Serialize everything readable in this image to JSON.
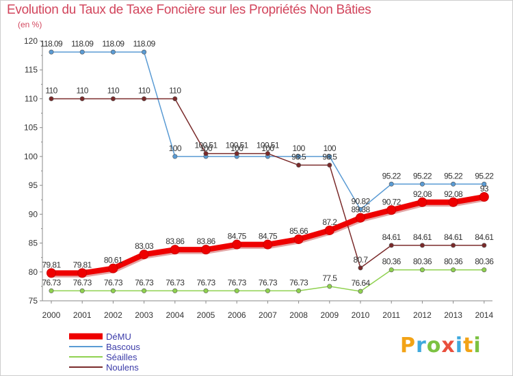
{
  "title": "Evolution du Taux de Taxe Foncière sur les Propriétés Non Bâties",
  "subtitle": "(en %)",
  "logo": {
    "letters": [
      "P",
      "r",
      "o",
      "x",
      "i",
      "t",
      "i"
    ],
    "colors": [
      "#f2a316",
      "#3fa9dd",
      "#7cc242",
      "#e94f3d",
      "#3fa9dd",
      "#f2a316",
      "#7cc242"
    ]
  },
  "chart_data": {
    "type": "line",
    "x": [
      "2000",
      "2001",
      "2002",
      "2003",
      "2004",
      "2005",
      "2006",
      "2007",
      "2008",
      "2009",
      "2010",
      "2011",
      "2012",
      "2013",
      "2014"
    ],
    "ylim": [
      75,
      120
    ],
    "yticks": [
      "75",
      "80",
      "85",
      "90",
      "95",
      "100",
      "105",
      "110",
      "115",
      "120"
    ],
    "grid": false,
    "legend_position": "bottom-left",
    "series": [
      {
        "name": "DéMU",
        "color": "#ee0000",
        "stroke": "thick",
        "values": [
          79.81,
          79.81,
          80.61,
          83.03,
          83.86,
          83.86,
          84.75,
          84.75,
          85.66,
          87.2,
          89.38,
          90.72,
          92.08,
          92.08,
          93
        ],
        "labels": [
          "79.81",
          "79.81",
          "80.61",
          "83.03",
          "83.86",
          "83.86",
          "84.75",
          "84.75",
          "85.66",
          "87.2",
          "89.38",
          "90.72",
          "92.08",
          "92.08",
          "93"
        ]
      },
      {
        "name": "Bascous",
        "color": "#5a9bd4",
        "stroke": "thin",
        "values": [
          118.09,
          118.09,
          118.09,
          118.09,
          100,
          100,
          100,
          100,
          100,
          100,
          90.82,
          95.22,
          95.22,
          95.22,
          95.22
        ],
        "labels": [
          "118.09",
          "118.09",
          "118.09",
          "118.09",
          "100",
          "100",
          "100",
          "100",
          "100",
          "100",
          "90.82",
          "95.22",
          "95.22",
          "95.22",
          "95.22"
        ]
      },
      {
        "name": "Séailles",
        "color": "#8fd14f",
        "stroke": "thin",
        "values": [
          76.73,
          76.73,
          76.73,
          76.73,
          76.73,
          76.73,
          76.73,
          76.73,
          76.73,
          77.5,
          76.64,
          80.36,
          80.36,
          80.36,
          80.36
        ],
        "labels": [
          "76.73",
          "76.73",
          "76.73",
          "76.73",
          "76.73",
          "76.73",
          "76.73",
          "76.73",
          "76.73",
          "77.5",
          "76.64",
          "80.36",
          "80.36",
          "80.36",
          "80.36"
        ]
      },
      {
        "name": "Noulens",
        "color": "#7a2a2a",
        "stroke": "thin",
        "values": [
          110,
          110,
          110,
          110,
          110,
          100.51,
          100.51,
          100.51,
          98.5,
          98.5,
          80.7,
          84.61,
          84.61,
          84.61,
          84.61
        ],
        "labels": [
          "110",
          "110",
          "110",
          "110",
          "110",
          "100.51",
          "100.51",
          "100.51",
          "98.5",
          "98.5",
          "80.7",
          "84.61",
          "84.61",
          "84.61",
          "84.61"
        ]
      }
    ]
  }
}
